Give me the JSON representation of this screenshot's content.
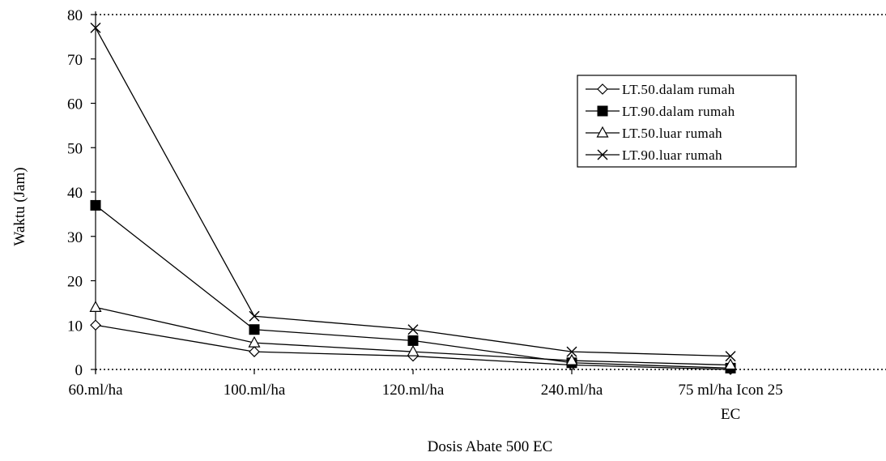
{
  "chart_data": {
    "type": "line",
    "title": "",
    "xlabel": "Dosis Abate 500 EC",
    "ylabel": "Waktu (Jam)",
    "categories": [
      "60.ml/ha",
      "100.ml/ha",
      "120.ml/ha",
      "240.ml/ha",
      "75 ml/ha Icon 25 EC"
    ],
    "category_lines": [
      [
        "60.ml/ha"
      ],
      [
        "100.ml/ha"
      ],
      [
        "120.ml/ha"
      ],
      [
        "240.ml/ha"
      ],
      [
        "75 ml/ha Icon 25",
        "EC"
      ]
    ],
    "ylim": [
      0,
      80
    ],
    "yticks": [
      "0",
      "10",
      "20",
      "30",
      "40",
      "50",
      "60",
      "70",
      "80"
    ],
    "grid": false,
    "legend_position": "top-right",
    "series": [
      {
        "name": "LT.50.dalam rumah",
        "marker": "diamond-open",
        "values": [
          10,
          4,
          3,
          1,
          0
        ]
      },
      {
        "name": "LT.90.dalam rumah",
        "marker": "square-filled",
        "values": [
          37,
          9,
          6.5,
          1.5,
          0.3
        ]
      },
      {
        "name": "LT.50.luar rumah",
        "marker": "triangle-open",
        "values": [
          14,
          6,
          4,
          2,
          1
        ]
      },
      {
        "name": "LT.90.luar rumah",
        "marker": "x",
        "values": [
          77,
          12,
          9,
          4,
          3
        ]
      }
    ]
  }
}
